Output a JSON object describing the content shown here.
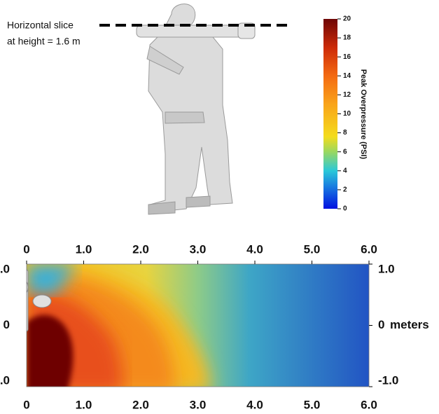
{
  "annotation": {
    "line1": "Horizontal slice",
    "line2": "at height = 1.6 m"
  },
  "colorbar": {
    "label": "Peak Overpressure (PSI)",
    "lim": [
      0,
      20
    ],
    "ticks": [
      0,
      2,
      4,
      6,
      8,
      10,
      12,
      14,
      16,
      18,
      20
    ]
  },
  "slice": {
    "xlim": [
      0,
      6
    ],
    "xticks": [
      0,
      {
        "value": 1,
        "label": "1.0"
      },
      {
        "value": 2,
        "label": "2.0"
      },
      {
        "value": 3,
        "label": "3.0"
      },
      {
        "value": 4,
        "label": "4.0"
      },
      {
        "value": 5,
        "label": "5.0"
      },
      {
        "value": 6,
        "label": "6.0"
      }
    ],
    "ylim": [
      -1,
      1
    ],
    "yticks": [
      {
        "value": 1,
        "label": "1.0"
      },
      0,
      {
        "value": -1,
        "label": "-1.0"
      }
    ],
    "y_unit": "meters"
  }
}
